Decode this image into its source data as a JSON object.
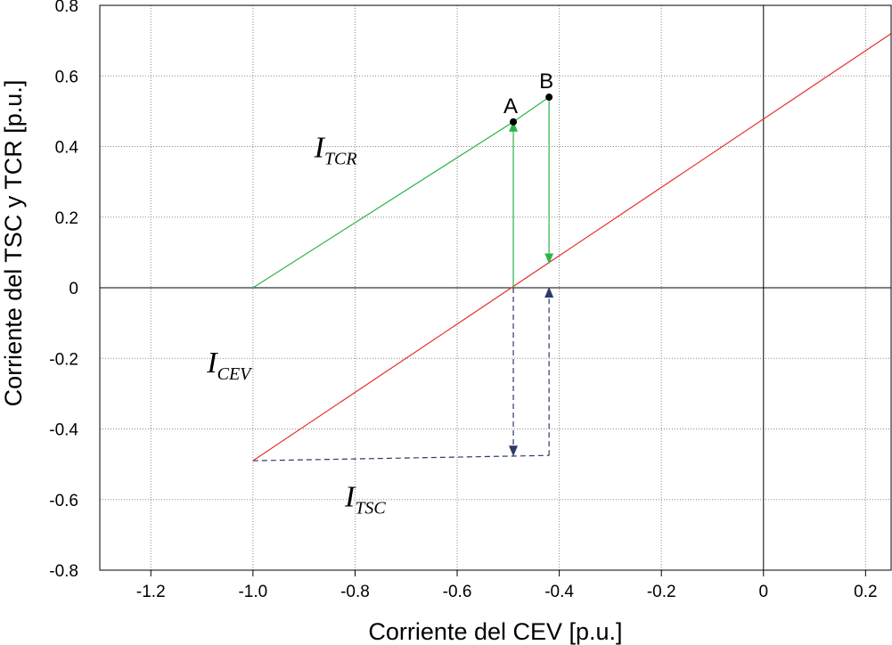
{
  "chart_data": {
    "type": "line",
    "xlabel": "Corriente del CEV [p.u.]",
    "ylabel": "Corriente del TSC y TCR [p.u.]",
    "xlim": [
      -1.3,
      0.25
    ],
    "ylim": [
      -0.8,
      0.8
    ],
    "xticks": [
      "-1.2",
      "-1.0",
      "-0.8",
      "-0.6",
      "-0.4",
      "-0.2",
      "0",
      "0.2"
    ],
    "yticks": [
      "0.8",
      "0.6",
      "0.4",
      "0.2",
      "0",
      "-0.2",
      "-0.4",
      "-0.6",
      "-0.8"
    ],
    "grid": true,
    "series": [
      {
        "name_main": "I",
        "name_sub": "CEV",
        "color": "#e8312f",
        "style": "solid",
        "x": [
          -1.0,
          0.25
        ],
        "y": [
          -0.49,
          0.72
        ]
      },
      {
        "name_main": "I",
        "name_sub": "TCR",
        "color": "#2db34a",
        "style": "solid",
        "x": [
          -1.0,
          -0.49,
          -0.42
        ],
        "y": [
          0.0,
          0.47,
          0.54
        ]
      },
      {
        "name_main": "I",
        "name_sub": "TSC",
        "color": "#2b3a6b",
        "style": "dashed",
        "x": [
          -1.0,
          -0.42
        ],
        "y": [
          -0.49,
          -0.475
        ]
      }
    ],
    "points": [
      {
        "label": "A",
        "x": -0.49,
        "y": 0.47
      },
      {
        "label": "B",
        "x": -0.42,
        "y": 0.54
      }
    ],
    "arrows": [
      {
        "x": -0.49,
        "y_from": 0.0,
        "y_to": 0.47,
        "color": "#2db34a",
        "style": "solid"
      },
      {
        "x": -0.42,
        "y_from": 0.54,
        "y_to": 0.07,
        "color": "#2db34a",
        "style": "solid"
      },
      {
        "x": -0.49,
        "y_from": 0.0,
        "y_to": -0.475,
        "color": "#2b3a6b",
        "style": "dashed"
      },
      {
        "x": -0.42,
        "y_from": -0.475,
        "y_to": 0.0,
        "color": "#2b3a6b",
        "style": "dashed"
      }
    ]
  }
}
